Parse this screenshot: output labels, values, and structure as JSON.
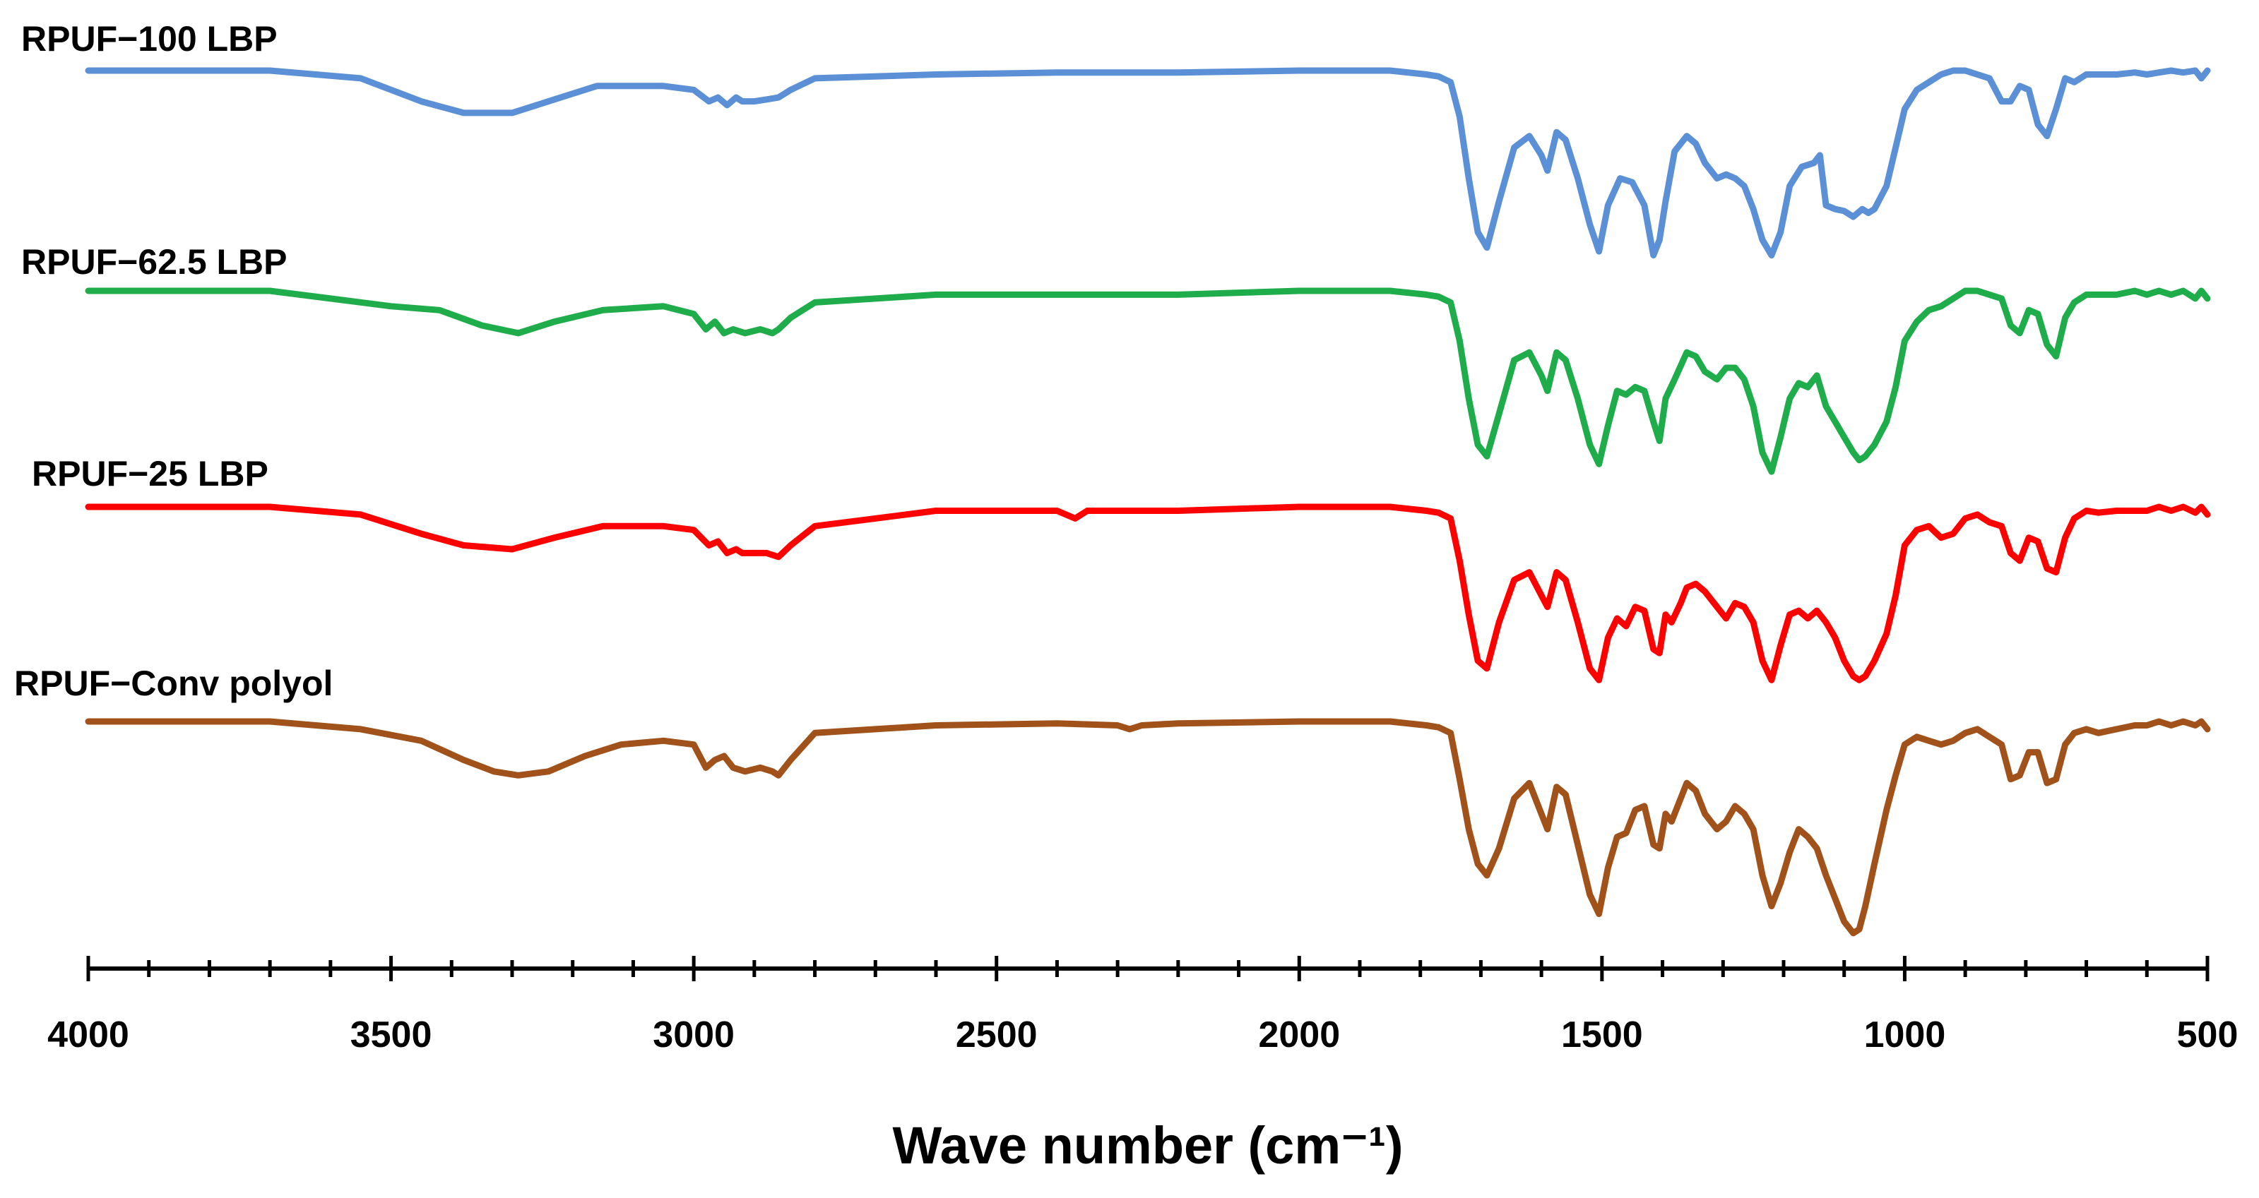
{
  "chart_data": {
    "type": "line",
    "title": "",
    "xlabel": "Wave number (cm⁻¹)",
    "ylabel": "",
    "xlim": [
      4000,
      500
    ],
    "x_reversed": true,
    "ylim": [
      0,
      1.2
    ],
    "grid": false,
    "legend": "inline labels above each trace",
    "x_major_ticks": [
      4000,
      3500,
      3000,
      2500,
      2000,
      1500,
      1000,
      500
    ],
    "x_minor_step": 100,
    "tick_labels": [
      "4000",
      "3500",
      "3000",
      "2500",
      "2000",
      "1500",
      "1000",
      "500"
    ],
    "series": [
      {
        "name": "RPUF−100 LBP",
        "color": "#5b8fd6",
        "x": [
          4000,
          3700,
          3550,
          3450,
          3380,
          3300,
          3240,
          3160,
          3050,
          3000,
          2975,
          2960,
          2945,
          2930,
          2920,
          2900,
          2880,
          2860,
          2840,
          2800,
          2600,
          2400,
          2200,
          2000,
          1850,
          1790,
          1770,
          1750,
          1735,
          1720,
          1705,
          1690,
          1670,
          1645,
          1620,
          1600,
          1590,
          1575,
          1560,
          1540,
          1520,
          1505,
          1490,
          1470,
          1450,
          1430,
          1415,
          1405,
          1395,
          1380,
          1360,
          1345,
          1330,
          1310,
          1295,
          1280,
          1265,
          1250,
          1235,
          1220,
          1205,
          1190,
          1170,
          1150,
          1140,
          1130,
          1115,
          1100,
          1085,
          1070,
          1060,
          1050,
          1030,
          1015,
          1000,
          980,
          960,
          940,
          920,
          900,
          880,
          860,
          840,
          825,
          810,
          795,
          780,
          765,
          750,
          735,
          720,
          700,
          680,
          650,
          620,
          600,
          580,
          560,
          540,
          520,
          510,
          500
        ],
        "values": [
          1.0,
          1.0,
          0.98,
          0.92,
          0.89,
          0.89,
          0.92,
          0.96,
          0.96,
          0.95,
          0.92,
          0.93,
          0.91,
          0.93,
          0.92,
          0.92,
          0.925,
          0.93,
          0.95,
          0.98,
          0.99,
          0.995,
          0.995,
          1.0,
          1.0,
          0.99,
          0.985,
          0.97,
          0.88,
          0.72,
          0.58,
          0.54,
          0.66,
          0.8,
          0.83,
          0.78,
          0.74,
          0.84,
          0.82,
          0.72,
          0.6,
          0.53,
          0.65,
          0.72,
          0.71,
          0.65,
          0.52,
          0.56,
          0.66,
          0.79,
          0.83,
          0.81,
          0.76,
          0.72,
          0.73,
          0.72,
          0.7,
          0.64,
          0.56,
          0.52,
          0.58,
          0.7,
          0.75,
          0.76,
          0.78,
          0.65,
          0.64,
          0.635,
          0.62,
          0.64,
          0.63,
          0.64,
          0.7,
          0.8,
          0.9,
          0.95,
          0.97,
          0.99,
          1.0,
          1.0,
          0.99,
          0.98,
          0.92,
          0.92,
          0.96,
          0.95,
          0.86,
          0.83,
          0.9,
          0.98,
          0.97,
          0.99,
          0.99,
          0.99,
          0.995,
          0.99,
          0.995,
          1.0,
          0.995,
          1.0,
          0.98,
          1.0
        ]
      },
      {
        "name": "RPUF−62.5 LBP",
        "color": "#1fac4a",
        "x": [
          4000,
          3700,
          3600,
          3500,
          3420,
          3350,
          3290,
          3230,
          3150,
          3050,
          3000,
          2980,
          2965,
          2950,
          2935,
          2915,
          2890,
          2870,
          2860,
          2840,
          2800,
          2600,
          2400,
          2200,
          2000,
          1850,
          1790,
          1770,
          1750,
          1735,
          1720,
          1705,
          1690,
          1670,
          1645,
          1620,
          1600,
          1590,
          1575,
          1560,
          1540,
          1520,
          1505,
          1490,
          1475,
          1460,
          1445,
          1430,
          1415,
          1405,
          1395,
          1380,
          1360,
          1345,
          1330,
          1310,
          1295,
          1280,
          1265,
          1250,
          1235,
          1220,
          1205,
          1190,
          1175,
          1160,
          1145,
          1130,
          1115,
          1100,
          1085,
          1075,
          1065,
          1050,
          1030,
          1015,
          1000,
          980,
          960,
          940,
          920,
          900,
          880,
          860,
          840,
          825,
          810,
          795,
          780,
          765,
          750,
          735,
          720,
          700,
          680,
          650,
          620,
          600,
          580,
          560,
          540,
          520,
          510,
          500
        ],
        "values": [
          1.0,
          1.0,
          0.98,
          0.96,
          0.95,
          0.91,
          0.89,
          0.92,
          0.95,
          0.96,
          0.94,
          0.9,
          0.92,
          0.89,
          0.9,
          0.89,
          0.9,
          0.89,
          0.9,
          0.93,
          0.97,
          0.99,
          0.99,
          0.99,
          1.0,
          1.0,
          0.99,
          0.985,
          0.97,
          0.87,
          0.72,
          0.6,
          0.57,
          0.68,
          0.82,
          0.84,
          0.78,
          0.74,
          0.84,
          0.82,
          0.72,
          0.6,
          0.55,
          0.65,
          0.74,
          0.73,
          0.75,
          0.74,
          0.66,
          0.61,
          0.72,
          0.77,
          0.84,
          0.83,
          0.79,
          0.77,
          0.8,
          0.8,
          0.77,
          0.7,
          0.58,
          0.53,
          0.62,
          0.72,
          0.76,
          0.75,
          0.78,
          0.7,
          0.66,
          0.62,
          0.58,
          0.56,
          0.57,
          0.6,
          0.66,
          0.75,
          0.87,
          0.92,
          0.95,
          0.96,
          0.98,
          1.0,
          1.0,
          0.99,
          0.98,
          0.91,
          0.89,
          0.95,
          0.94,
          0.86,
          0.83,
          0.93,
          0.97,
          0.99,
          0.99,
          0.99,
          1.0,
          0.99,
          1.0,
          0.99,
          1.0,
          0.98,
          1.0,
          0.98
        ]
      },
      {
        "name": "RPUF−25 LBP",
        "color": "#ff0000",
        "x": [
          4000,
          3700,
          3550,
          3450,
          3380,
          3300,
          3230,
          3150,
          3050,
          3000,
          2975,
          2960,
          2945,
          2930,
          2920,
          2900,
          2880,
          2860,
          2840,
          2800,
          2600,
          2400,
          2370,
          2350,
          2200,
          2000,
          1850,
          1790,
          1770,
          1750,
          1735,
          1720,
          1705,
          1690,
          1670,
          1645,
          1620,
          1600,
          1590,
          1575,
          1560,
          1540,
          1520,
          1505,
          1490,
          1475,
          1460,
          1445,
          1430,
          1415,
          1405,
          1395,
          1385,
          1370,
          1360,
          1345,
          1330,
          1310,
          1295,
          1280,
          1265,
          1250,
          1235,
          1220,
          1205,
          1190,
          1175,
          1160,
          1145,
          1130,
          1115,
          1100,
          1085,
          1075,
          1065,
          1050,
          1030,
          1015,
          1000,
          980,
          960,
          940,
          920,
          900,
          880,
          860,
          840,
          825,
          810,
          795,
          780,
          765,
          750,
          735,
          720,
          700,
          680,
          650,
          620,
          600,
          580,
          560,
          540,
          520,
          510,
          500
        ],
        "values": [
          1.0,
          1.0,
          0.98,
          0.93,
          0.9,
          0.89,
          0.92,
          0.95,
          0.95,
          0.94,
          0.9,
          0.91,
          0.88,
          0.89,
          0.88,
          0.88,
          0.88,
          0.87,
          0.9,
          0.95,
          0.99,
          0.99,
          0.97,
          0.99,
          0.99,
          1.0,
          1.0,
          0.99,
          0.985,
          0.97,
          0.86,
          0.72,
          0.6,
          0.58,
          0.7,
          0.81,
          0.83,
          0.77,
          0.74,
          0.83,
          0.81,
          0.7,
          0.58,
          0.55,
          0.66,
          0.71,
          0.69,
          0.74,
          0.73,
          0.63,
          0.62,
          0.72,
          0.7,
          0.75,
          0.79,
          0.8,
          0.78,
          0.74,
          0.71,
          0.75,
          0.74,
          0.7,
          0.6,
          0.55,
          0.64,
          0.72,
          0.73,
          0.71,
          0.73,
          0.7,
          0.66,
          0.6,
          0.56,
          0.55,
          0.56,
          0.6,
          0.67,
          0.77,
          0.9,
          0.94,
          0.95,
          0.92,
          0.93,
          0.97,
          0.98,
          0.96,
          0.95,
          0.88,
          0.86,
          0.92,
          0.91,
          0.84,
          0.83,
          0.92,
          0.97,
          0.99,
          0.985,
          0.99,
          0.99,
          0.99,
          1.0,
          0.99,
          1.0,
          0.985,
          1.0,
          0.98
        ]
      },
      {
        "name": "RPUF−Conv polyol",
        "color": "#a0521a",
        "x": [
          4000,
          3700,
          3550,
          3450,
          3380,
          3330,
          3290,
          3240,
          3180,
          3120,
          3050,
          3000,
          2980,
          2965,
          2950,
          2935,
          2915,
          2890,
          2870,
          2860,
          2840,
          2800,
          2600,
          2400,
          2300,
          2280,
          2260,
          2200,
          2000,
          1850,
          1790,
          1770,
          1750,
          1735,
          1720,
          1705,
          1690,
          1670,
          1645,
          1620,
          1600,
          1590,
          1575,
          1560,
          1540,
          1520,
          1505,
          1490,
          1475,
          1460,
          1445,
          1430,
          1415,
          1405,
          1395,
          1385,
          1370,
          1360,
          1345,
          1330,
          1310,
          1295,
          1280,
          1265,
          1250,
          1235,
          1220,
          1205,
          1190,
          1175,
          1160,
          1145,
          1130,
          1115,
          1100,
          1085,
          1075,
          1065,
          1050,
          1030,
          1015,
          1000,
          980,
          960,
          940,
          920,
          900,
          880,
          860,
          840,
          825,
          810,
          795,
          780,
          765,
          750,
          735,
          720,
          700,
          680,
          650,
          620,
          600,
          580,
          560,
          540,
          520,
          510,
          500
        ],
        "values": [
          1.0,
          1.0,
          0.98,
          0.95,
          0.9,
          0.87,
          0.86,
          0.87,
          0.91,
          0.94,
          0.95,
          0.94,
          0.88,
          0.9,
          0.91,
          0.88,
          0.87,
          0.88,
          0.87,
          0.86,
          0.9,
          0.97,
          0.99,
          0.995,
          0.99,
          0.98,
          0.99,
          0.995,
          1.0,
          1.0,
          0.99,
          0.985,
          0.97,
          0.85,
          0.72,
          0.63,
          0.6,
          0.67,
          0.8,
          0.84,
          0.76,
          0.72,
          0.83,
          0.81,
          0.68,
          0.55,
          0.5,
          0.62,
          0.7,
          0.71,
          0.77,
          0.78,
          0.68,
          0.67,
          0.76,
          0.74,
          0.8,
          0.84,
          0.82,
          0.76,
          0.72,
          0.74,
          0.78,
          0.76,
          0.72,
          0.6,
          0.52,
          0.58,
          0.66,
          0.72,
          0.7,
          0.67,
          0.6,
          0.54,
          0.48,
          0.45,
          0.46,
          0.52,
          0.63,
          0.77,
          0.86,
          0.94,
          0.96,
          0.95,
          0.94,
          0.95,
          0.97,
          0.98,
          0.96,
          0.94,
          0.85,
          0.86,
          0.92,
          0.92,
          0.84,
          0.85,
          0.94,
          0.97,
          0.98,
          0.97,
          0.98,
          0.99,
          0.99,
          1.0,
          0.99,
          1.0,
          0.99,
          1.0,
          0.98
        ]
      }
    ]
  }
}
